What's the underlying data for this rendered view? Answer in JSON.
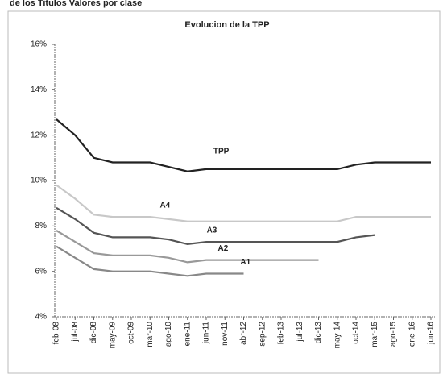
{
  "chart_data": {
    "type": "line",
    "heading": "de los Titulos Valores por clase",
    "title": "Evolucion de la TPP",
    "categories": [
      "feb-08",
      "jul-08",
      "dic-08",
      "may-09",
      "oct-09",
      "mar-10",
      "ago-10",
      "ene-11",
      "jun-11",
      "nov-11",
      "abr-12",
      "sep-12",
      "feb-13",
      "jul-13",
      "dic-13",
      "may-14",
      "oct-14",
      "mar-15",
      "ago-15",
      "ene-16",
      "jun-16"
    ],
    "series": [
      {
        "name": "TPP",
        "color": "#222222",
        "values": [
          12.7,
          12.0,
          11.0,
          10.8,
          10.8,
          10.8,
          10.6,
          10.4,
          10.5,
          10.5,
          10.5,
          10.5,
          10.5,
          10.5,
          10.5,
          10.5,
          10.7,
          10.8,
          10.8,
          10.8,
          10.8
        ]
      },
      {
        "name": "A4",
        "color": "#c8c8c8",
        "values": [
          9.8,
          9.2,
          8.5,
          8.4,
          8.4,
          8.4,
          8.3,
          8.2,
          8.2,
          8.2,
          8.2,
          8.2,
          8.2,
          8.2,
          8.2,
          8.2,
          8.4,
          8.4,
          8.4,
          8.4,
          8.4
        ]
      },
      {
        "name": "A3",
        "color": "#555555",
        "values": [
          8.8,
          8.3,
          7.7,
          7.5,
          7.5,
          7.5,
          7.4,
          7.2,
          7.3,
          7.3,
          7.3,
          7.3,
          7.3,
          7.3,
          7.3,
          7.3,
          7.5,
          7.6,
          null,
          null,
          null
        ]
      },
      {
        "name": "A2",
        "color": "#999999",
        "values": [
          7.8,
          7.3,
          6.8,
          6.7,
          6.7,
          6.7,
          6.6,
          6.4,
          6.5,
          6.5,
          6.5,
          6.5,
          6.5,
          6.5,
          6.5,
          null,
          null,
          null,
          null,
          null,
          null
        ]
      },
      {
        "name": "A1",
        "color": "#888888",
        "values": [
          7.1,
          6.6,
          6.1,
          6.0,
          6.0,
          6.0,
          5.9,
          5.8,
          5.9,
          5.9,
          5.9,
          null,
          null,
          null,
          null,
          null,
          null,
          null,
          null,
          null,
          null
        ]
      }
    ],
    "ylim": [
      4,
      16
    ],
    "yticks": [
      {
        "value": 4,
        "label": "4%"
      },
      {
        "value": 6,
        "label": "6%"
      },
      {
        "value": 8,
        "label": "8%"
      },
      {
        "value": 10,
        "label": "10%"
      },
      {
        "value": 12,
        "label": "12%"
      },
      {
        "value": 14,
        "label": "14%"
      },
      {
        "value": 16,
        "label": "16%"
      }
    ],
    "grid": false
  }
}
